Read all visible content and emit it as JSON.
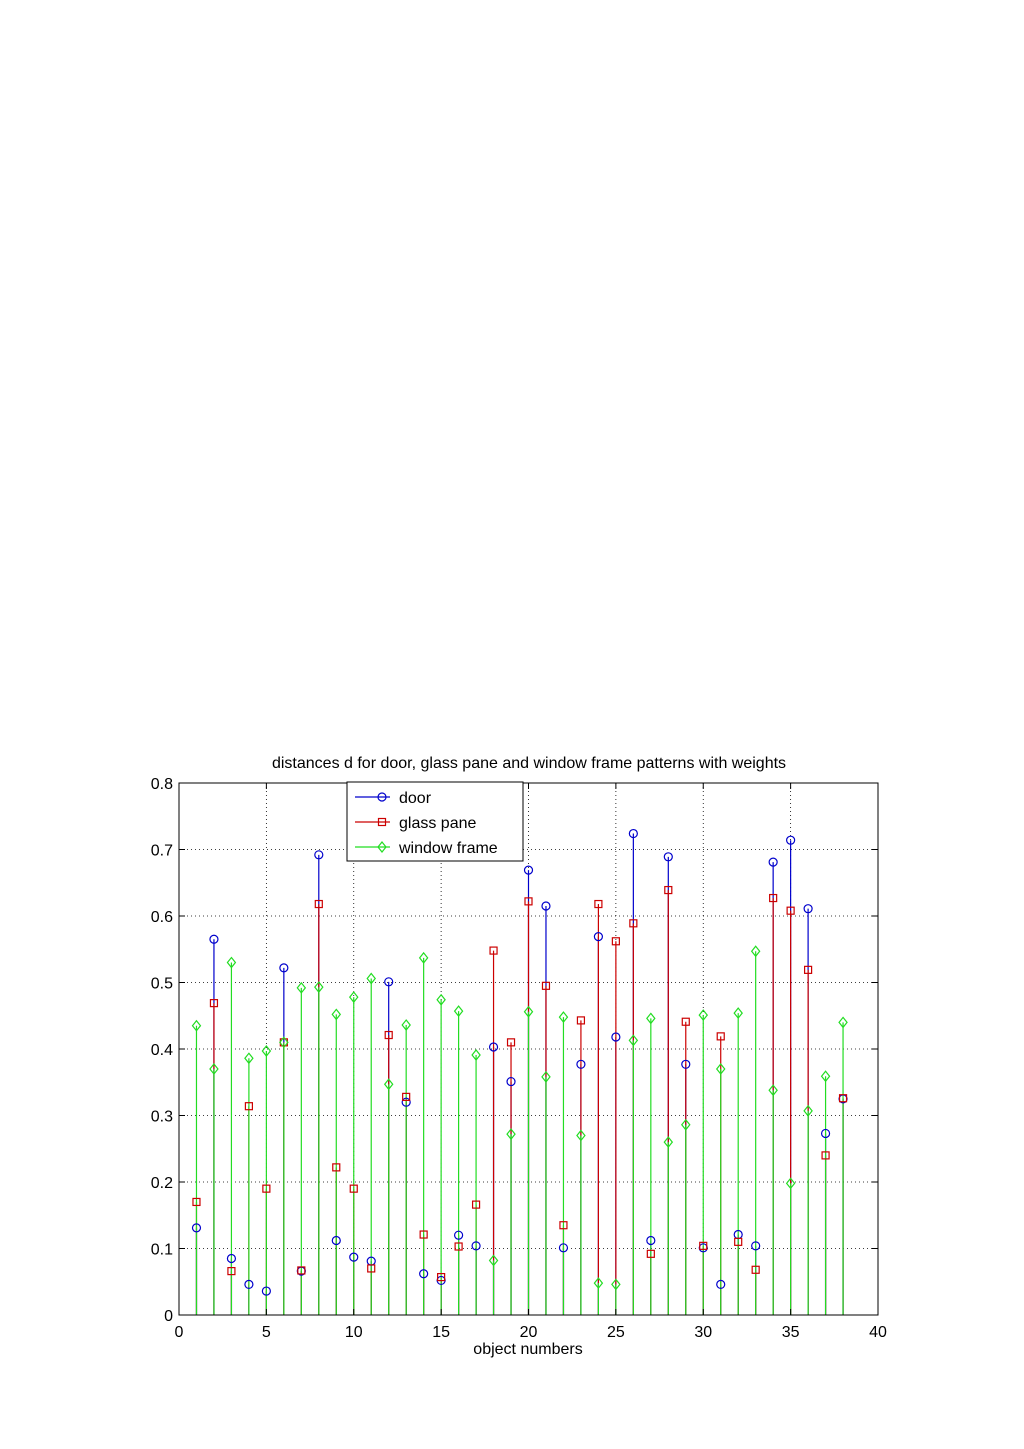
{
  "chart_data": {
    "type": "stem",
    "title": "distances d for  door, glass pane and window frame patterns with weights",
    "xlabel": "object numbers",
    "ylabel": "",
    "xlim": [
      0,
      40
    ],
    "ylim": [
      0,
      0.8
    ],
    "xticks": [
      0,
      5,
      10,
      15,
      20,
      25,
      30,
      35,
      40
    ],
    "yticks": [
      0,
      0.1,
      0.2,
      0.3,
      0.4,
      0.5,
      0.6,
      0.7,
      0.8
    ],
    "xtick_labels": [
      "0",
      "5",
      "10",
      "15",
      "20",
      "25",
      "30",
      "35",
      "40"
    ],
    "ytick_labels": [
      "0",
      "0.1",
      "0.2",
      "0.3",
      "0.4",
      "0.5",
      "0.6",
      "0.7",
      "0.8"
    ],
    "grid": true,
    "legend_position": "top-left",
    "x": [
      1,
      2,
      3,
      4,
      5,
      6,
      7,
      8,
      9,
      10,
      11,
      12,
      13,
      14,
      15,
      16,
      17,
      18,
      19,
      20,
      21,
      22,
      23,
      24,
      25,
      26,
      27,
      28,
      29,
      30,
      31,
      32,
      33,
      34,
      35,
      36,
      37,
      38
    ],
    "series": [
      {
        "name": "door",
        "color": "#0000cc",
        "marker": "circle",
        "values": [
          0.131,
          0.565,
          0.085,
          0.046,
          0.036,
          0.522,
          0.066,
          0.692,
          0.112,
          0.087,
          0.081,
          0.501,
          0.32,
          0.062,
          0.052,
          0.12,
          0.104,
          0.403,
          0.351,
          0.669,
          0.615,
          0.101,
          0.377,
          0.569,
          0.418,
          0.724,
          0.112,
          0.689,
          0.377,
          0.101,
          0.046,
          0.121,
          0.104,
          0.681,
          0.714,
          0.611,
          0.273,
          0.325
        ]
      },
      {
        "name": "glass pane",
        "color": "#cc0000",
        "marker": "square",
        "values": [
          0.17,
          0.469,
          0.066,
          0.314,
          0.19,
          0.41,
          0.067,
          0.618,
          0.222,
          0.19,
          0.07,
          0.421,
          0.328,
          0.121,
          0.057,
          0.103,
          0.166,
          0.548,
          0.41,
          0.622,
          0.495,
          0.135,
          0.443,
          0.618,
          0.562,
          0.589,
          0.092,
          0.639,
          0.441,
          0.104,
          0.419,
          0.11,
          0.068,
          0.627,
          0.608,
          0.519,
          0.24,
          0.326
        ]
      },
      {
        "name": "window frame",
        "color": "#22dd22",
        "marker": "diamond",
        "values": [
          0.435,
          0.37,
          0.53,
          0.386,
          0.397,
          0.41,
          0.492,
          0.493,
          0.452,
          0.478,
          0.506,
          0.347,
          0.436,
          0.537,
          0.474,
          0.457,
          0.391,
          0.082,
          0.272,
          0.456,
          0.358,
          0.448,
          0.27,
          0.048,
          0.046,
          0.413,
          0.446,
          0.26,
          0.286,
          0.451,
          0.37,
          0.454,
          0.547,
          0.338,
          0.198,
          0.307,
          0.359,
          0.44
        ]
      }
    ]
  }
}
